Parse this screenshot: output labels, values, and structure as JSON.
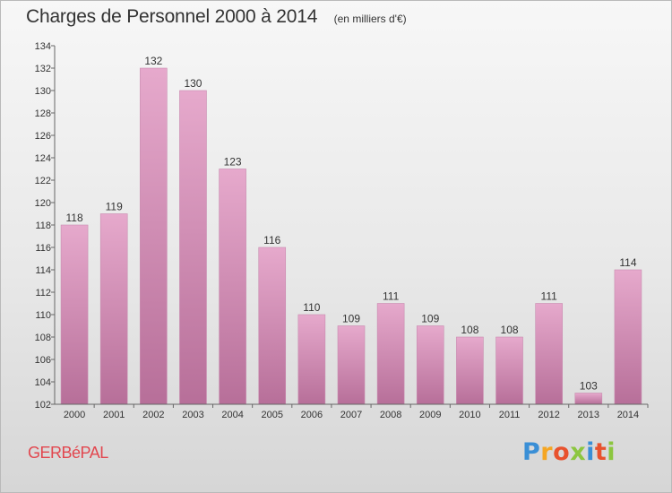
{
  "header": {
    "title": "Charges de Personnel 2000 à 2014",
    "subtitle": "(en milliers d'€)"
  },
  "footer": {
    "commune": "GERBéPAL",
    "brand": "Proxiti",
    "brand_colors": [
      "#3a8fd6",
      "#f5a623",
      "#e8522e",
      "#8cc63f",
      "#3a8fd6",
      "#e8522e",
      "#8cc63f"
    ]
  },
  "colors": {
    "bar_top": "#e6a9cc",
    "bar_bottom": "#b76f99",
    "bar_edge": "#c98cb0",
    "commune": "#e2474f"
  },
  "chart_data": {
    "type": "bar",
    "title": "Charges de Personnel 2000 à 2014",
    "subtitle": "(en milliers d'€)",
    "categories": [
      "2000",
      "2001",
      "2002",
      "2003",
      "2004",
      "2005",
      "2006",
      "2007",
      "2008",
      "2009",
      "2010",
      "2011",
      "2012",
      "2013",
      "2014"
    ],
    "values": [
      118,
      119,
      132,
      130,
      123,
      116,
      110,
      109,
      111,
      109,
      108,
      108,
      111,
      103,
      114
    ],
    "ylim": [
      102,
      134
    ],
    "yticks": [
      102,
      104,
      106,
      108,
      110,
      112,
      114,
      116,
      118,
      120,
      122,
      124,
      126,
      128,
      130,
      132,
      134
    ],
    "grid": false,
    "legend": "none"
  }
}
